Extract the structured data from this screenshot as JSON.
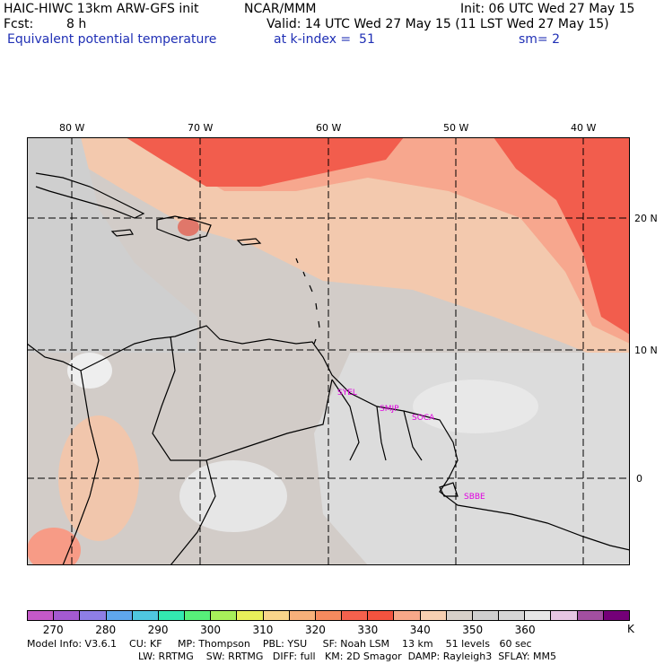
{
  "header": {
    "model_title": "HAIC-HIWC 13km ARW-GFS init",
    "org": "NCAR/MMM",
    "init": "Init: 06 UTC Wed 27 May 15",
    "fcst_label": "Fcst:",
    "fcst_value": "8 h",
    "valid": "Valid: 14 UTC Wed 27 May 15 (11 LST Wed 27 May 15)",
    "field": "Equivalent potential temperature",
    "level": "at k-index =  51",
    "smoothing": "sm= 2"
  },
  "map": {
    "lon_labels": [
      "80 W",
      "70 W",
      "60 W",
      "50 W",
      "40 W"
    ],
    "lat_labels": [
      "20 N",
      "10 N",
      "0"
    ],
    "stations": [
      {
        "id": "SYEL",
        "label": "SYEL"
      },
      {
        "id": "SMJP",
        "label": "SMJP"
      },
      {
        "id": "SOCA",
        "label": "SOCA"
      },
      {
        "id": "SBBE",
        "label": "SBBE"
      }
    ]
  },
  "colorbar": {
    "colors": [
      "#c459c8",
      "#a45ad2",
      "#8e7ee6",
      "#5fa6ec",
      "#4fc7e0",
      "#33e8b0",
      "#57f07a",
      "#a8f05a",
      "#e8f05a",
      "#f9d58a",
      "#f7b07a",
      "#f58a5e",
      "#f5614d",
      "#f3533f",
      "#f8a889",
      "#f7d0b2",
      "#d7d0c9",
      "#cfcfcf",
      "#d6d6d6",
      "#e6e6e6",
      "#e7c6e3",
      "#a24fa0",
      "#740078"
    ],
    "tick_labels": [
      "270",
      "280",
      "290",
      "300",
      "310",
      "320",
      "330",
      "340",
      "350",
      "360"
    ],
    "unit": "K"
  },
  "footer": {
    "line1": "Model Info: V3.6.1    CU: KF     MP: Thompson    PBL: YSU     SF: Noah LSM    13 km    51 levels   60 sec",
    "line2": "LW: RRTMG    SW: RRTMG   DIFF: full   KM: 2D Smagor  DAMP: Rayleigh3  SFLAY: MM5"
  }
}
